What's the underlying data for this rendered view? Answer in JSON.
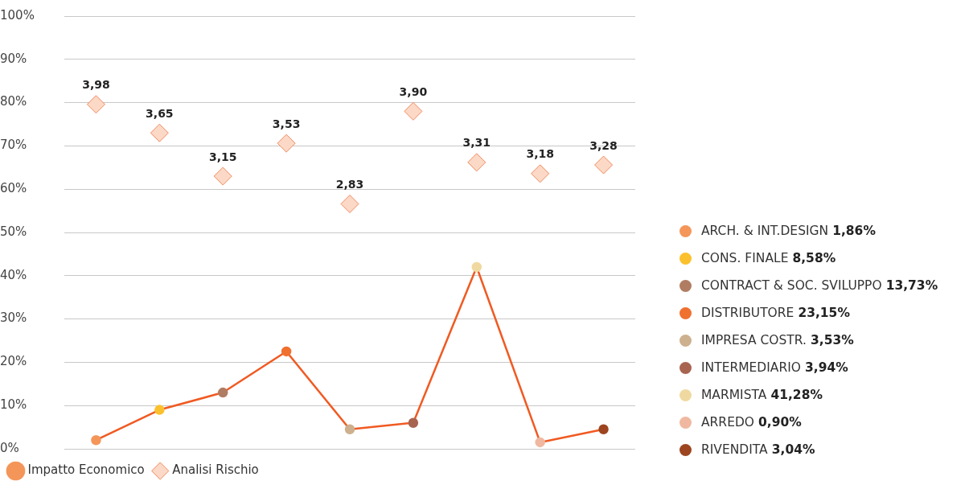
{
  "chart_data": [
    {
      "type": "line",
      "categories": [
        null,
        null,
        null,
        null,
        null,
        null,
        null,
        null,
        null
      ],
      "series": [
        {
          "name": "Impatto Economico",
          "type": "line",
          "marker": "circle",
          "color": "#f05a22",
          "colors": [
            "#f4965a",
            "#fbc02d",
            "#b07d62",
            "#f07030",
            "#cdb08e",
            "#a86450",
            "#f0d9a0",
            "#f0b8a0",
            "#9c4520"
          ],
          "values": [
            2,
            9,
            13,
            22.5,
            4.5,
            6,
            42,
            1.5,
            4.5
          ]
        },
        {
          "name": "Analisi Rischio",
          "type": "scatter",
          "marker": "diamond",
          "axis": "y2",
          "color": "#f08a60",
          "values": [
            3.98,
            3.65,
            3.15,
            3.53,
            2.83,
            3.9,
            3.31,
            3.18,
            3.28
          ],
          "value_labels": [
            "3,98",
            "3,65",
            "3,15",
            "3,53",
            "2,83",
            "3,90",
            "3,31",
            "3,18",
            "3,28"
          ]
        }
      ],
      "ylim": [
        0,
        100
      ],
      "yticks": [
        {
          "value": 0,
          "label": "0%"
        },
        {
          "value": 10,
          "label": "10%"
        },
        {
          "value": 20,
          "label": "20%"
        },
        {
          "value": 30,
          "label": "30%"
        },
        {
          "value": 40,
          "label": "40%"
        },
        {
          "value": 50,
          "label": "50%"
        },
        {
          "value": 60,
          "label": "60%"
        },
        {
          "value": 70,
          "label": "70%"
        },
        {
          "value": 80,
          "label": "80%"
        },
        {
          "value": 90,
          "label": "90%"
        },
        {
          "value": 100,
          "label": "100%"
        }
      ],
      "y2lim": [
        0,
        5
      ],
      "grid": "y",
      "legend": "bottom left",
      "tick_labels": "y"
    },
    {
      "type": "other",
      "categories": [
        "ARCH. & INT.DESIGN",
        "CONS. FINALE",
        "CONTRACT & SOC. SVILUPPO",
        "DISTRIBUTORE",
        "IMPRESA COSTR.",
        "INTERMEDIARIO",
        "MARMISTA",
        "ARREDO",
        "RIVENDITA"
      ],
      "colors": [
        "#f4965a",
        "#fbc02d",
        "#b07d62",
        "#f07030",
        "#cdb08e",
        "#a86450",
        "#f0d9a0",
        "#f0b8a0",
        "#9c4520"
      ],
      "value_labels": [
        "1,86%",
        "8,58%",
        "13,73%",
        "23,15%",
        "3,53%",
        "3,94%",
        "41,28%",
        "0,90%",
        "3,04%"
      ]
    }
  ]
}
